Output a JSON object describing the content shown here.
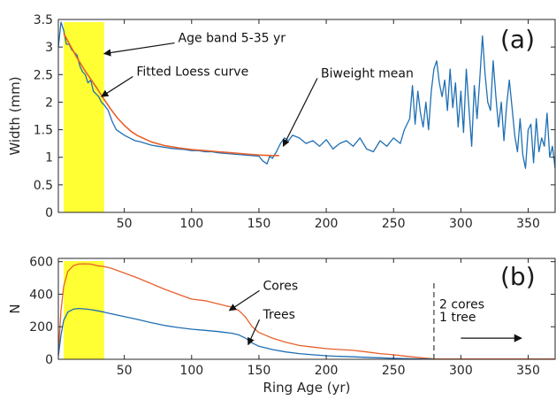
{
  "chart_data": [
    {
      "type": "line",
      "panel_label": "(a)",
      "xlabel": "",
      "ylabel": "Width (mm)",
      "xlim": [
        1,
        370
      ],
      "ylim": [
        0,
        3.5
      ],
      "xticks": [
        50,
        100,
        150,
        200,
        250,
        300,
        350
      ],
      "yticks": [
        0,
        0.5,
        1,
        1.5,
        2,
        2.5,
        3,
        3.5
      ],
      "grid": false,
      "highlight_band": {
        "x": [
          5,
          35
        ],
        "color": "#ffff33"
      },
      "series": [
        {
          "role": "ring-width-series",
          "color": "#1f6fb4",
          "x": [
            1,
            3,
            5,
            7,
            9,
            11,
            13,
            15,
            17,
            19,
            21,
            23,
            25,
            27,
            29,
            31,
            33,
            35,
            38,
            41,
            44,
            47,
            50,
            54,
            58,
            62,
            66,
            70,
            75,
            80,
            85,
            90,
            95,
            100,
            105,
            110,
            115,
            120,
            125,
            130,
            135,
            140,
            145,
            150,
            153,
            156,
            158,
            160,
            163,
            166,
            169,
            172,
            175,
            180,
            185,
            190,
            195,
            200,
            205,
            210,
            215,
            220,
            225,
            230,
            235,
            240,
            245,
            250,
            255,
            258,
            262,
            264,
            266,
            268,
            270,
            272,
            274,
            276,
            278,
            280,
            282,
            284,
            286,
            288,
            290,
            292,
            294,
            296,
            298,
            300,
            302,
            304,
            306,
            308,
            310,
            312,
            314,
            316,
            318,
            320,
            322,
            324,
            326,
            328,
            330,
            332,
            334,
            336,
            338,
            340,
            342,
            344,
            346,
            348,
            350,
            352,
            354,
            356,
            358,
            360,
            362,
            364,
            366,
            368,
            370
          ],
          "y": [
            3.0,
            3.45,
            3.3,
            3.05,
            3.05,
            2.95,
            2.9,
            2.85,
            2.65,
            2.55,
            2.5,
            2.35,
            2.4,
            2.2,
            2.15,
            2.1,
            2.0,
            1.95,
            1.85,
            1.65,
            1.5,
            1.45,
            1.4,
            1.35,
            1.3,
            1.28,
            1.25,
            1.22,
            1.2,
            1.18,
            1.16,
            1.15,
            1.14,
            1.12,
            1.12,
            1.1,
            1.1,
            1.08,
            1.07,
            1.06,
            1.05,
            1.04,
            1.03,
            1.02,
            0.93,
            0.88,
            1.02,
            0.98,
            1.1,
            1.25,
            1.35,
            1.3,
            1.4,
            1.35,
            1.25,
            1.3,
            1.2,
            1.32,
            1.15,
            1.25,
            1.3,
            1.2,
            1.35,
            1.15,
            1.1,
            1.3,
            1.2,
            1.35,
            1.25,
            1.5,
            1.7,
            2.3,
            1.6,
            2.2,
            1.8,
            1.55,
            2.0,
            1.5,
            2.2,
            2.6,
            2.75,
            2.35,
            2.1,
            2.4,
            1.85,
            2.6,
            1.9,
            2.35,
            1.55,
            2.2,
            1.45,
            2.6,
            1.9,
            1.2,
            2.3,
            1.7,
            2.4,
            3.2,
            2.5,
            2.0,
            1.85,
            2.75,
            2.1,
            1.55,
            2.0,
            1.3,
            1.95,
            2.4,
            1.9,
            1.4,
            1.1,
            1.7,
            1.05,
            0.8,
            1.5,
            1.6,
            0.9,
            1.7,
            1.1,
            1.35,
            1.2,
            1.8,
            1.0,
            1.2,
            0.8
          ]
        },
        {
          "role": "loess-curve",
          "color": "#e8602c",
          "x": [
            5,
            10,
            15,
            20,
            25,
            30,
            35,
            40,
            45,
            50,
            55,
            60,
            70,
            80,
            90,
            100,
            110,
            120,
            130,
            140,
            150,
            160,
            165
          ],
          "y": [
            3.25,
            3.02,
            2.8,
            2.6,
            2.42,
            2.24,
            2.05,
            1.87,
            1.71,
            1.58,
            1.47,
            1.39,
            1.28,
            1.21,
            1.17,
            1.14,
            1.12,
            1.1,
            1.08,
            1.06,
            1.04,
            1.03,
            1.03
          ]
        }
      ],
      "annotations": [
        {
          "id": "age-band",
          "text": "Age band 5-35 yr",
          "label_at": [
            90,
            3.17
          ],
          "arrow_to": [
            35,
            2.88
          ]
        },
        {
          "id": "loess",
          "text": "Fitted Loess curve",
          "label_at": [
            59,
            2.56
          ],
          "arrow_to": [
            33,
            2.1
          ]
        },
        {
          "id": "biweight",
          "text": "Biweight mean",
          "label_at": [
            196,
            2.53
          ],
          "arrow_to": [
            168,
            1.2
          ]
        }
      ]
    },
    {
      "type": "line",
      "panel_label": "(b)",
      "xlabel": "Ring Age (yr)",
      "ylabel": "N",
      "xlim": [
        1,
        370
      ],
      "ylim": [
        0,
        620
      ],
      "xticks": [
        50,
        100,
        150,
        200,
        250,
        300,
        350
      ],
      "yticks": [
        0,
        200,
        400,
        600
      ],
      "grid": false,
      "highlight_band": {
        "x": [
          5,
          35
        ],
        "color": "#ffff33"
      },
      "series": [
        {
          "name": "Cores",
          "color": "#e8602c",
          "x": [
            1,
            3,
            5,
            8,
            12,
            16,
            20,
            25,
            30,
            35,
            40,
            50,
            60,
            70,
            80,
            90,
            100,
            110,
            120,
            130,
            135,
            140,
            145,
            150,
            160,
            170,
            180,
            190,
            200,
            210,
            220,
            230,
            240,
            250,
            260,
            270,
            275,
            279
          ],
          "y": [
            30,
            300,
            450,
            540,
            575,
            585,
            587,
            585,
            575,
            570,
            560,
            530,
            500,
            465,
            430,
            400,
            370,
            360,
            340,
            320,
            300,
            260,
            200,
            165,
            130,
            105,
            85,
            75,
            65,
            60,
            55,
            45,
            35,
            28,
            18,
            10,
            6,
            3
          ]
        },
        {
          "name": "Trees",
          "color": "#1f6fb4",
          "x": [
            1,
            3,
            5,
            8,
            12,
            16,
            20,
            25,
            30,
            35,
            40,
            50,
            60,
            70,
            80,
            90,
            100,
            110,
            120,
            130,
            135,
            140,
            145,
            150,
            160,
            170,
            180,
            190,
            200,
            210,
            220,
            230,
            240,
            250,
            260,
            270,
            275,
            279
          ],
          "y": [
            20,
            150,
            240,
            290,
            308,
            312,
            310,
            305,
            298,
            290,
            280,
            262,
            245,
            225,
            208,
            195,
            185,
            178,
            170,
            160,
            150,
            130,
            100,
            80,
            60,
            45,
            35,
            28,
            22,
            18,
            15,
            12,
            9,
            6,
            4,
            2,
            1,
            1
          ]
        },
        {
          "name": "tail",
          "color": "#e8602c",
          "x": [
            279,
            370
          ],
          "y": [
            2,
            2
          ]
        }
      ],
      "annotations": [
        {
          "id": "cores",
          "text": "Cores",
          "label_at": [
            153,
            455
          ],
          "arrow_to": [
            128,
            300
          ]
        },
        {
          "id": "trees",
          "text": "Trees",
          "label_at": [
            153,
            277
          ],
          "arrow_to": [
            142,
            90
          ]
        },
        {
          "id": "tail-note-1",
          "text": "2 cores",
          "label_at": [
            284,
            340
          ]
        },
        {
          "id": "tail-note-2",
          "text": "1 tree",
          "label_at": [
            284,
            260
          ]
        }
      ],
      "vline": {
        "x": 280,
        "y": [
          0,
          470
        ],
        "style": "dashed"
      },
      "right_arrow": {
        "x": [
          300,
          345
        ],
        "y": 130
      }
    }
  ]
}
